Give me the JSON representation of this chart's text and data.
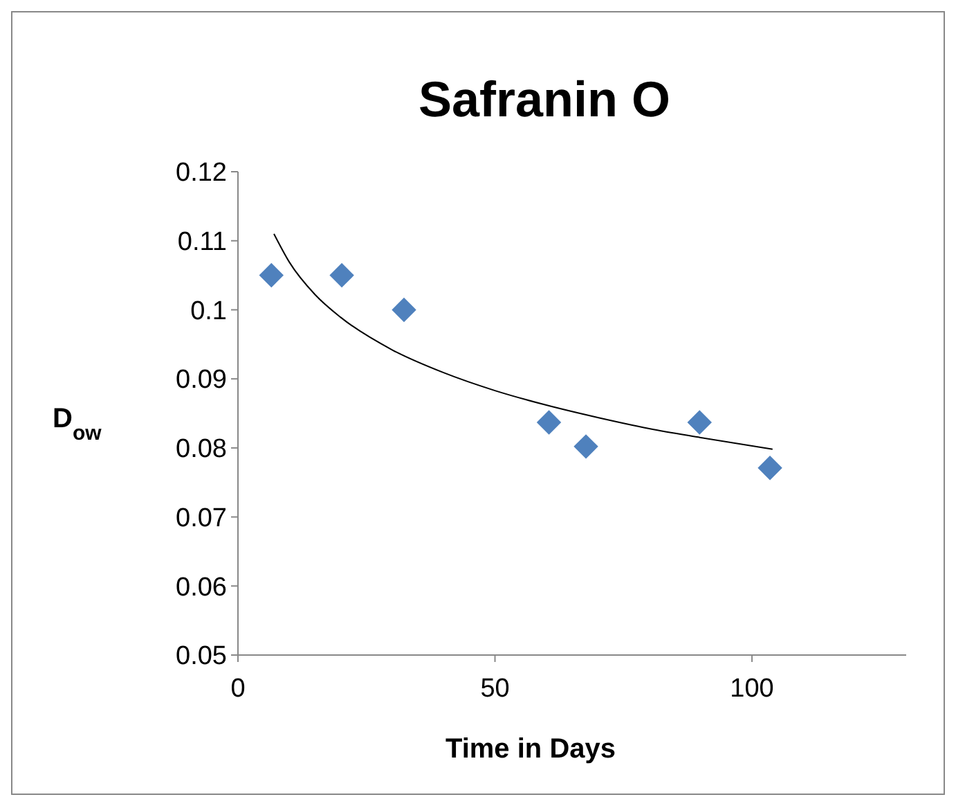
{
  "chart_data": {
    "type": "scatter",
    "title": "Safranin O",
    "xlabel": "Time in Days",
    "ylabel": "D$_{ow}$",
    "xlim": [
      0,
      130
    ],
    "xticks": [
      0,
      50,
      100
    ],
    "ylim": [
      0.05,
      0.12
    ],
    "yticks": [
      0.05,
      0.06,
      0.07,
      0.08,
      0.09,
      {
        "value": 0.1,
        "label": "0.1"
      },
      0.11,
      0.12
    ],
    "grid": false,
    "marker": "diamond",
    "series": [
      {
        "color": "#4f81bd",
        "x": [
          6.5,
          20.2,
          32.3,
          60.5,
          67.7,
          89.8,
          103.5
        ],
        "values": [
          0.105,
          0.105,
          0.1,
          0.0837,
          0.0802,
          0.0837,
          0.0771
        ]
      },
      {
        "type": "line",
        "color": "#000000",
        "marker": "none",
        "line_style": "solid",
        "x": [
          7,
          10,
          15,
          20,
          30,
          40,
          50,
          60,
          70,
          80,
          90,
          104
        ],
        "values": [
          0.111,
          0.1069,
          0.1022,
          0.0989,
          0.0942,
          0.0909,
          0.0883,
          0.0862,
          0.0844,
          0.0828,
          0.0815,
          0.0798
        ]
      }
    ]
  }
}
